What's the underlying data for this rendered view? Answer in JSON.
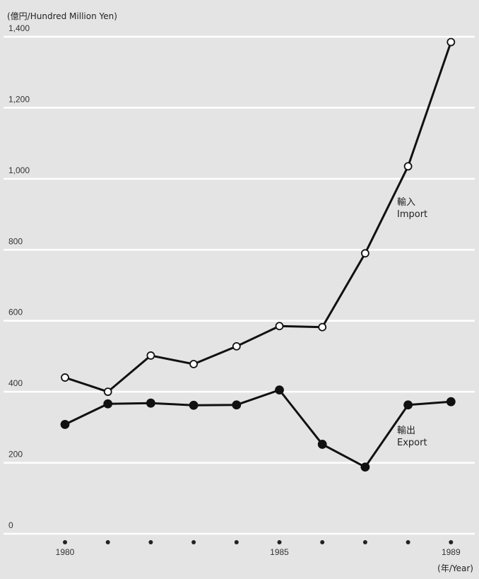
{
  "chart_data": {
    "type": "line",
    "ylabel": "(億円/Hundred Million Yen)",
    "xlabel": "(年/Year)",
    "ylim": [
      0,
      1400
    ],
    "yticks": [
      0,
      200,
      400,
      600,
      800,
      1000,
      1200,
      1400
    ],
    "ytick_labels": [
      "0",
      "200",
      "400",
      "600",
      "800",
      "1,000",
      "1,200",
      "1,400"
    ],
    "x": [
      1980,
      1981,
      1982,
      1983,
      1984,
      1985,
      1986,
      1987,
      1988,
      1989
    ],
    "xtick_labels": [
      "1980",
      "",
      "",
      "",
      "",
      "1985",
      "",
      "",
      "",
      "1989"
    ],
    "grid": true,
    "series": [
      {
        "name_jp": "輸入",
        "name": "Import",
        "marker": "open-circle",
        "values": [
          440,
          400,
          502,
          478,
          528,
          585,
          582,
          790,
          1035,
          1385
        ]
      },
      {
        "name_jp": "輸出",
        "name": "Export",
        "marker": "filled-circle",
        "values": [
          308,
          366,
          368,
          362,
          363,
          405,
          252,
          188,
          363,
          372
        ]
      }
    ]
  }
}
